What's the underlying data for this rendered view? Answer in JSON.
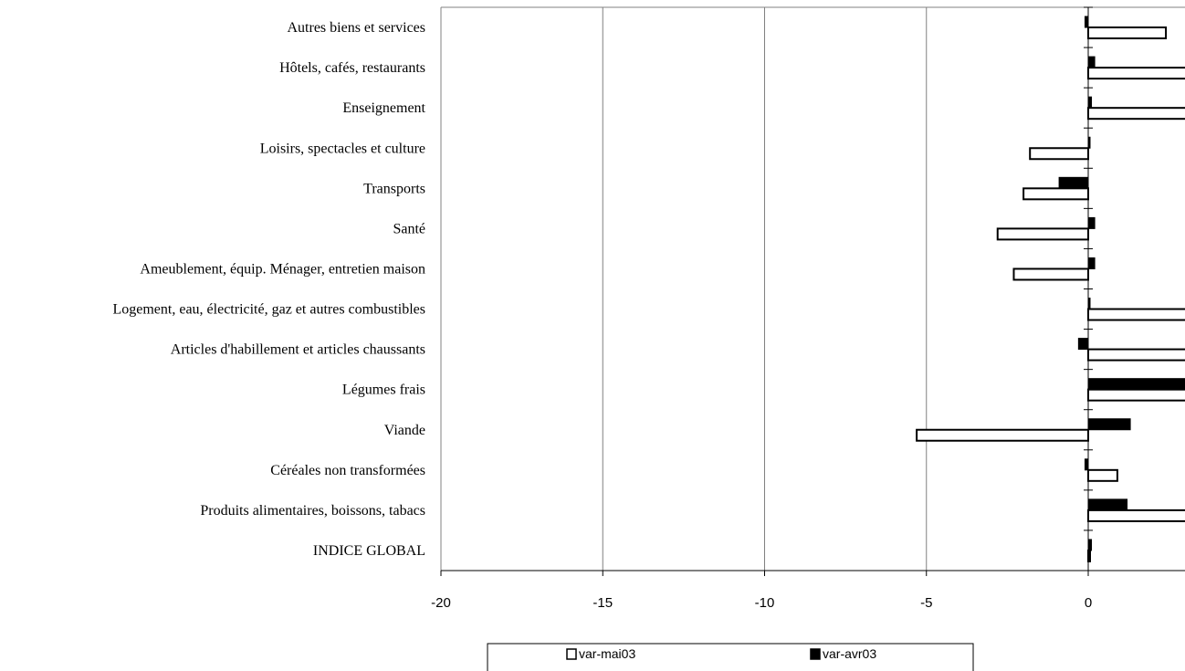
{
  "chart_data": {
    "type": "bar",
    "orientation": "horizontal",
    "categories": [
      "INDICE GLOBAL",
      "Produits alimentaires, boissons, tabacs",
      "Céréales non transformées",
      "Viande",
      "Légumes frais",
      "Articles d'habillement et articles chaussants",
      "Logement, eau, électricité, gaz et autres combustibles",
      "Ameublement, équip. Ménager, entretien maison",
      "Santé",
      "Transports",
      "Loisirs, spectacles et culture",
      "Enseignement",
      "Hôtels, cafés, restaurants",
      "Autres biens et services"
    ],
    "series": [
      {
        "name": "var-mai03",
        "color": "#ffffff",
        "values": [
          0.0,
          4.0,
          0.9,
          -5.3,
          4.0,
          4.0,
          4.0,
          -2.3,
          -2.8,
          -2.0,
          -1.8,
          4.0,
          4.0,
          2.4
        ]
      },
      {
        "name": "var-avr03",
        "color": "#000000",
        "values": [
          0.1,
          1.2,
          -0.1,
          1.3,
          4.0,
          -0.3,
          0.0,
          0.2,
          0.2,
          -0.9,
          0.0,
          0.1,
          0.2,
          -0.1
        ]
      }
    ],
    "xlim": [
      -20,
      3
    ],
    "xticks": [
      "-20",
      "-15",
      "-10",
      "-5",
      "0"
    ],
    "xtick_values": [
      -20,
      -15,
      -10,
      -5,
      0
    ],
    "grid": true,
    "legend_position": "bottom"
  }
}
